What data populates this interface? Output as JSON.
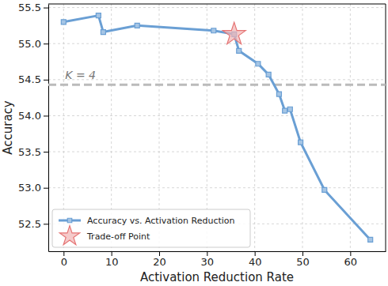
{
  "chart_data": {
    "type": "line",
    "x_label": "Activation Reduction Rate",
    "y_label": "Accuracy",
    "x": [
      0,
      7.3,
      8.3,
      15.4,
      31.4,
      35.7,
      36.7,
      40.7,
      42.9,
      45.1,
      46.3,
      47.4,
      49.6,
      54.6,
      64.2
    ],
    "series": [
      {
        "name": "Accuracy vs. Activation Reduction",
        "color": "#6a9fd4",
        "marker": "square",
        "line_style": "solid",
        "values": [
          55.3,
          55.39,
          55.16,
          55.25,
          55.18,
          55.13,
          54.9,
          54.72,
          54.57,
          54.3,
          54.07,
          54.09,
          53.63,
          52.97,
          52.28
        ]
      },
      {
        "name": "Trade-off Point",
        "type": "scatter",
        "color": "#e57373",
        "marker": "star",
        "x": [
          35.7
        ],
        "values": [
          55.13
        ]
      }
    ],
    "reference_lines": [
      {
        "y": 54.43,
        "label": "K = 4",
        "color": "#bbbbbb",
        "line_style": "dashed"
      }
    ],
    "xlim": [
      -3.2,
      67.4
    ],
    "ylim": [
      52.12,
      55.55
    ],
    "xticks": [
      0,
      10,
      20,
      30,
      40,
      50,
      60
    ],
    "yticks": [
      52.5,
      {
        "value": 53,
        "label": "53.0"
      },
      53.5,
      {
        "value": 54,
        "label": "54.0"
      },
      54.5,
      {
        "value": 55,
        "label": "55.0"
      },
      55.5
    ],
    "grid": true,
    "legend": "lower left"
  }
}
